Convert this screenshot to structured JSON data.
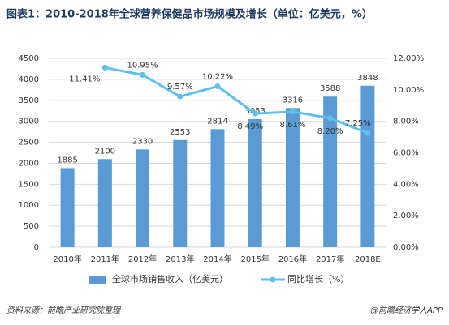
{
  "chart_data": {
    "type": "bar_line",
    "title": "图表1：2010-2018年全球营养保健品市场规模及增长（单位：亿美元，%）",
    "categories": [
      "2010年",
      "2011年",
      "2012年",
      "2013年",
      "2014年",
      "2015年",
      "2016年",
      "2017年",
      "2018E"
    ],
    "series": [
      {
        "name": "全球市场销售收入（亿美元）",
        "color": "#5b9bd5",
        "type": "bar",
        "values": [
          1885,
          2100,
          2330,
          2553,
          2814,
          3053,
          3316,
          3588,
          3848
        ]
      },
      {
        "name": "同比增长（%）",
        "color": "#5bc0eb",
        "type": "line",
        "axis": "y2",
        "values": [
          null,
          11.41,
          10.95,
          9.57,
          10.22,
          8.49,
          8.61,
          8.2,
          7.25
        ],
        "value_labels": [
          null,
          "11.41%",
          "10.95%",
          "9.57%",
          "10.22%",
          "8.49%",
          "8.61%",
          "8.20%",
          "7.25%"
        ]
      }
    ],
    "ylim": [
      0,
      4500
    ],
    "yticks": [
      0,
      500,
      1000,
      1500,
      2000,
      2500,
      3000,
      3500,
      4000,
      4500
    ],
    "y2lim": [
      0,
      12
    ],
    "y2ticks": [
      {
        "value": 0,
        "label": "0.00%"
      },
      {
        "value": 2,
        "label": "2.00%"
      },
      {
        "value": 4,
        "label": "4.00%"
      },
      {
        "value": 6,
        "label": "6.00%"
      },
      {
        "value": 8,
        "label": "8.00%"
      },
      {
        "value": 10,
        "label": "10.00%"
      },
      {
        "value": 12,
        "label": "12.00%"
      }
    ],
    "grid": true,
    "legend": "bottom",
    "source": "资料来源：前瞻产业研究院整理",
    "credit": "@前瞻经济学人APP"
  }
}
